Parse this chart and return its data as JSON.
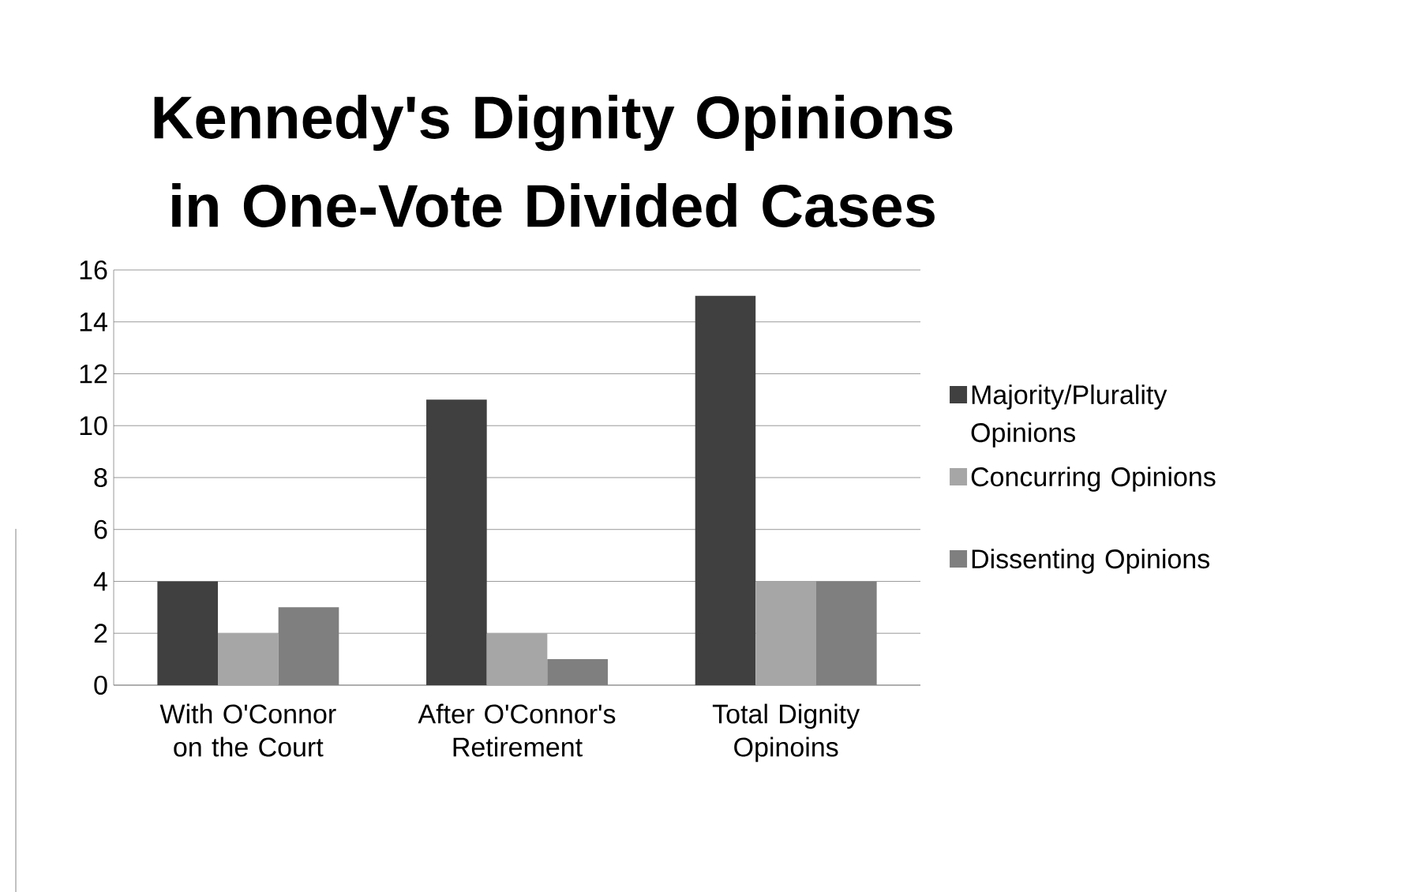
{
  "chart_data": {
    "type": "bar",
    "title": "Kennedy's Dignity Opinions in One-Vote Divided Cases",
    "categories": [
      "With O'Connor on the Court",
      "After O'Connor's Retirement",
      "Total Dignity Opinoins"
    ],
    "series": [
      {
        "name": "Majority/Plurality Opinions",
        "color": "#404040",
        "values": [
          4,
          11,
          15
        ]
      },
      {
        "name": "Concurring Opinions",
        "color": "#a6a6a6",
        "values": [
          2,
          2,
          4
        ]
      },
      {
        "name": "Dissenting Opinions",
        "color": "#7f7f7f",
        "values": [
          3,
          1,
          4
        ]
      }
    ],
    "ylim": [
      0,
      16
    ],
    "yticks": [
      0,
      2,
      4,
      6,
      8,
      10,
      12,
      14,
      16
    ],
    "grid": "y",
    "legend": "right"
  }
}
